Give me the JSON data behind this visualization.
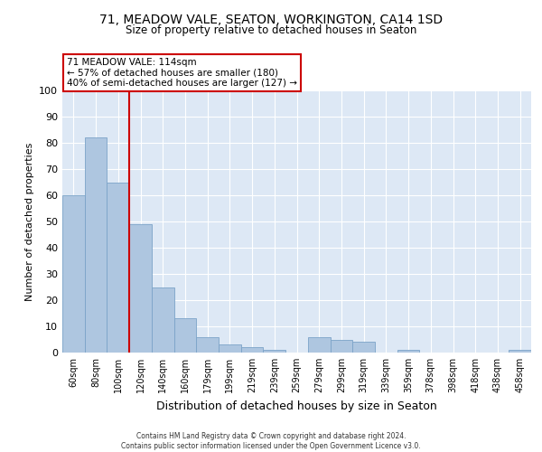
{
  "title1": "71, MEADOW VALE, SEATON, WORKINGTON, CA14 1SD",
  "title2": "Size of property relative to detached houses in Seaton",
  "xlabel": "Distribution of detached houses by size in Seaton",
  "ylabel": "Number of detached properties",
  "categories": [
    "60sqm",
    "80sqm",
    "100sqm",
    "120sqm",
    "140sqm",
    "160sqm",
    "179sqm",
    "199sqm",
    "219sqm",
    "239sqm",
    "259sqm",
    "279sqm",
    "299sqm",
    "319sqm",
    "339sqm",
    "359sqm",
    "378sqm",
    "398sqm",
    "418sqm",
    "438sqm",
    "458sqm"
  ],
  "values": [
    60,
    82,
    65,
    49,
    25,
    13,
    6,
    3,
    2,
    1,
    0,
    6,
    5,
    4,
    0,
    1,
    0,
    0,
    0,
    0,
    1
  ],
  "bar_color": "#aec6e0",
  "bar_edge_color": "#7ba3c8",
  "vline_color": "#cc0000",
  "annotation_text": "71 MEADOW VALE: 114sqm\n← 57% of detached houses are smaller (180)\n40% of semi-detached houses are larger (127) →",
  "annotation_box_color": "#ffffff",
  "annotation_box_edge_color": "#cc0000",
  "ylim": [
    0,
    100
  ],
  "yticks": [
    0,
    10,
    20,
    30,
    40,
    50,
    60,
    70,
    80,
    90,
    100
  ],
  "bg_color": "#dde8f5",
  "footer1": "Contains HM Land Registry data © Crown copyright and database right 2024.",
  "footer2": "Contains public sector information licensed under the Open Government Licence v3.0."
}
